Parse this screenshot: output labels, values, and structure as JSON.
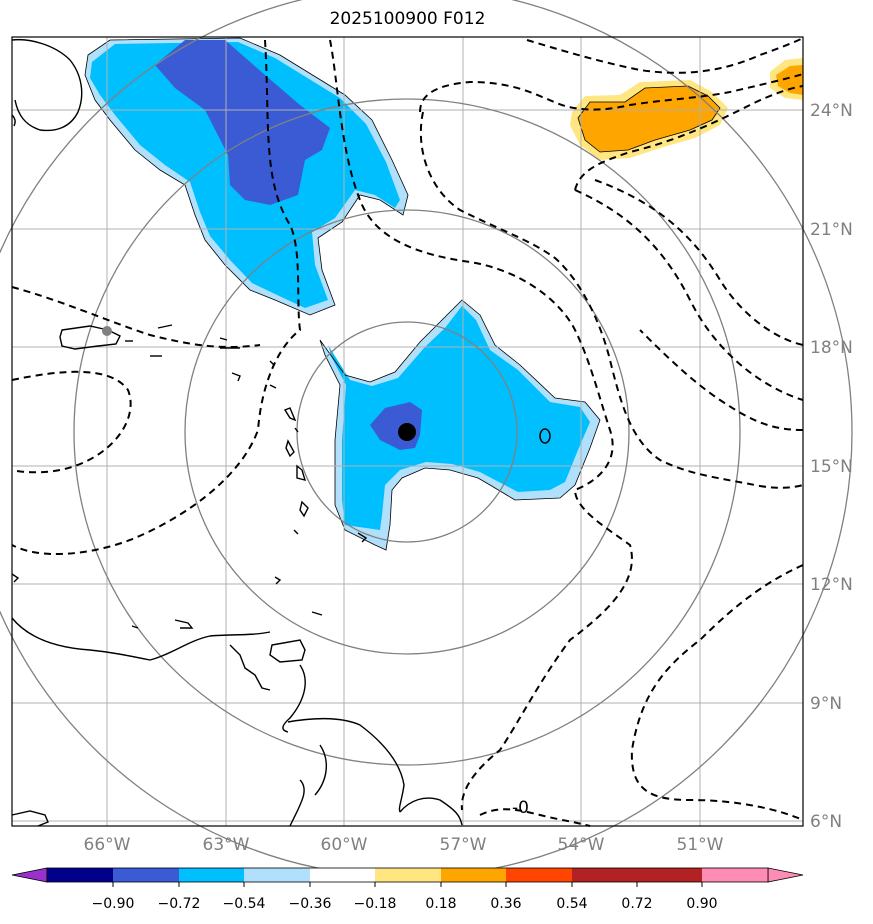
{
  "title": "2025100900 F012",
  "lon_labels": [
    "66°W",
    "63°W",
    "60°W",
    "57°W",
    "54°W",
    "51°W"
  ],
  "lat_labels": [
    "24°N",
    "21°N",
    "18°N",
    "15°N",
    "12°N",
    "9°N",
    "6°N"
  ],
  "contour_label": "-0",
  "colorbar": {
    "colors": [
      "#9932cc",
      "#00008b",
      "#3a5bd4",
      "#00bfff",
      "#b0e0fb",
      "#ffffff",
      "#ffe680",
      "#ffa500",
      "#ff4500",
      "#b22222",
      "#ff8cb4"
    ],
    "tick_labels": [
      "−0.90",
      "−0.72",
      "−0.54",
      "−0.36",
      "−0.18",
      "0.18",
      "0.36",
      "0.54",
      "0.72",
      "0.90"
    ]
  },
  "map": {
    "lon_range": [
      -68.4,
      -48.4
    ],
    "lat_range": [
      5.9,
      25.9
    ],
    "storm_center": {
      "lon": -58.4,
      "lat": 15.9
    },
    "reference_point": {
      "lon": -66.0,
      "lat": 18.4
    }
  }
}
